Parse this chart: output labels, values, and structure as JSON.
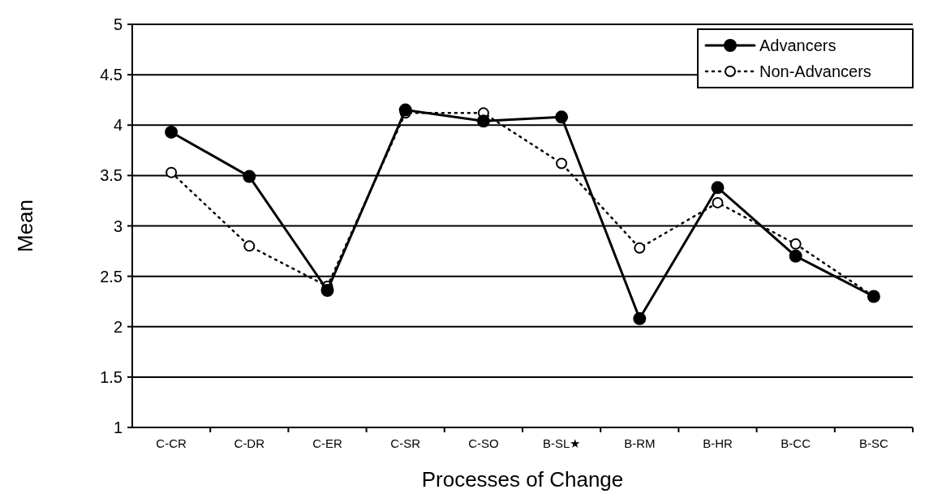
{
  "chart_data": {
    "type": "line",
    "xlabel": "Processes of Change",
    "ylabel": "Mean",
    "categories": [
      "C-CR",
      "C-DR",
      "C-ER",
      "C-SR",
      "C-SO",
      "B-SL★",
      "B-RM",
      "B-HR",
      "B-CC",
      "B-SC"
    ],
    "series": [
      {
        "name": "Advancers",
        "color": "#000000",
        "line_style": "solid",
        "marker": "circle",
        "values": [
          3.93,
          3.49,
          2.36,
          4.15,
          4.04,
          4.08,
          2.08,
          3.38,
          2.7,
          2.3
        ]
      },
      {
        "name": "Non-Advancers",
        "color": "#000000",
        "line_style": "dotted",
        "marker": "circle",
        "values": [
          3.53,
          2.8,
          2.4,
          4.12,
          4.12,
          3.62,
          2.78,
          3.23,
          2.82,
          2.3
        ]
      }
    ],
    "ylim": [
      1,
      5
    ],
    "yticks": [
      1,
      1.5,
      2,
      2.5,
      3,
      3.5,
      4,
      4.5,
      5
    ],
    "grid": "y",
    "legend": "top right"
  }
}
